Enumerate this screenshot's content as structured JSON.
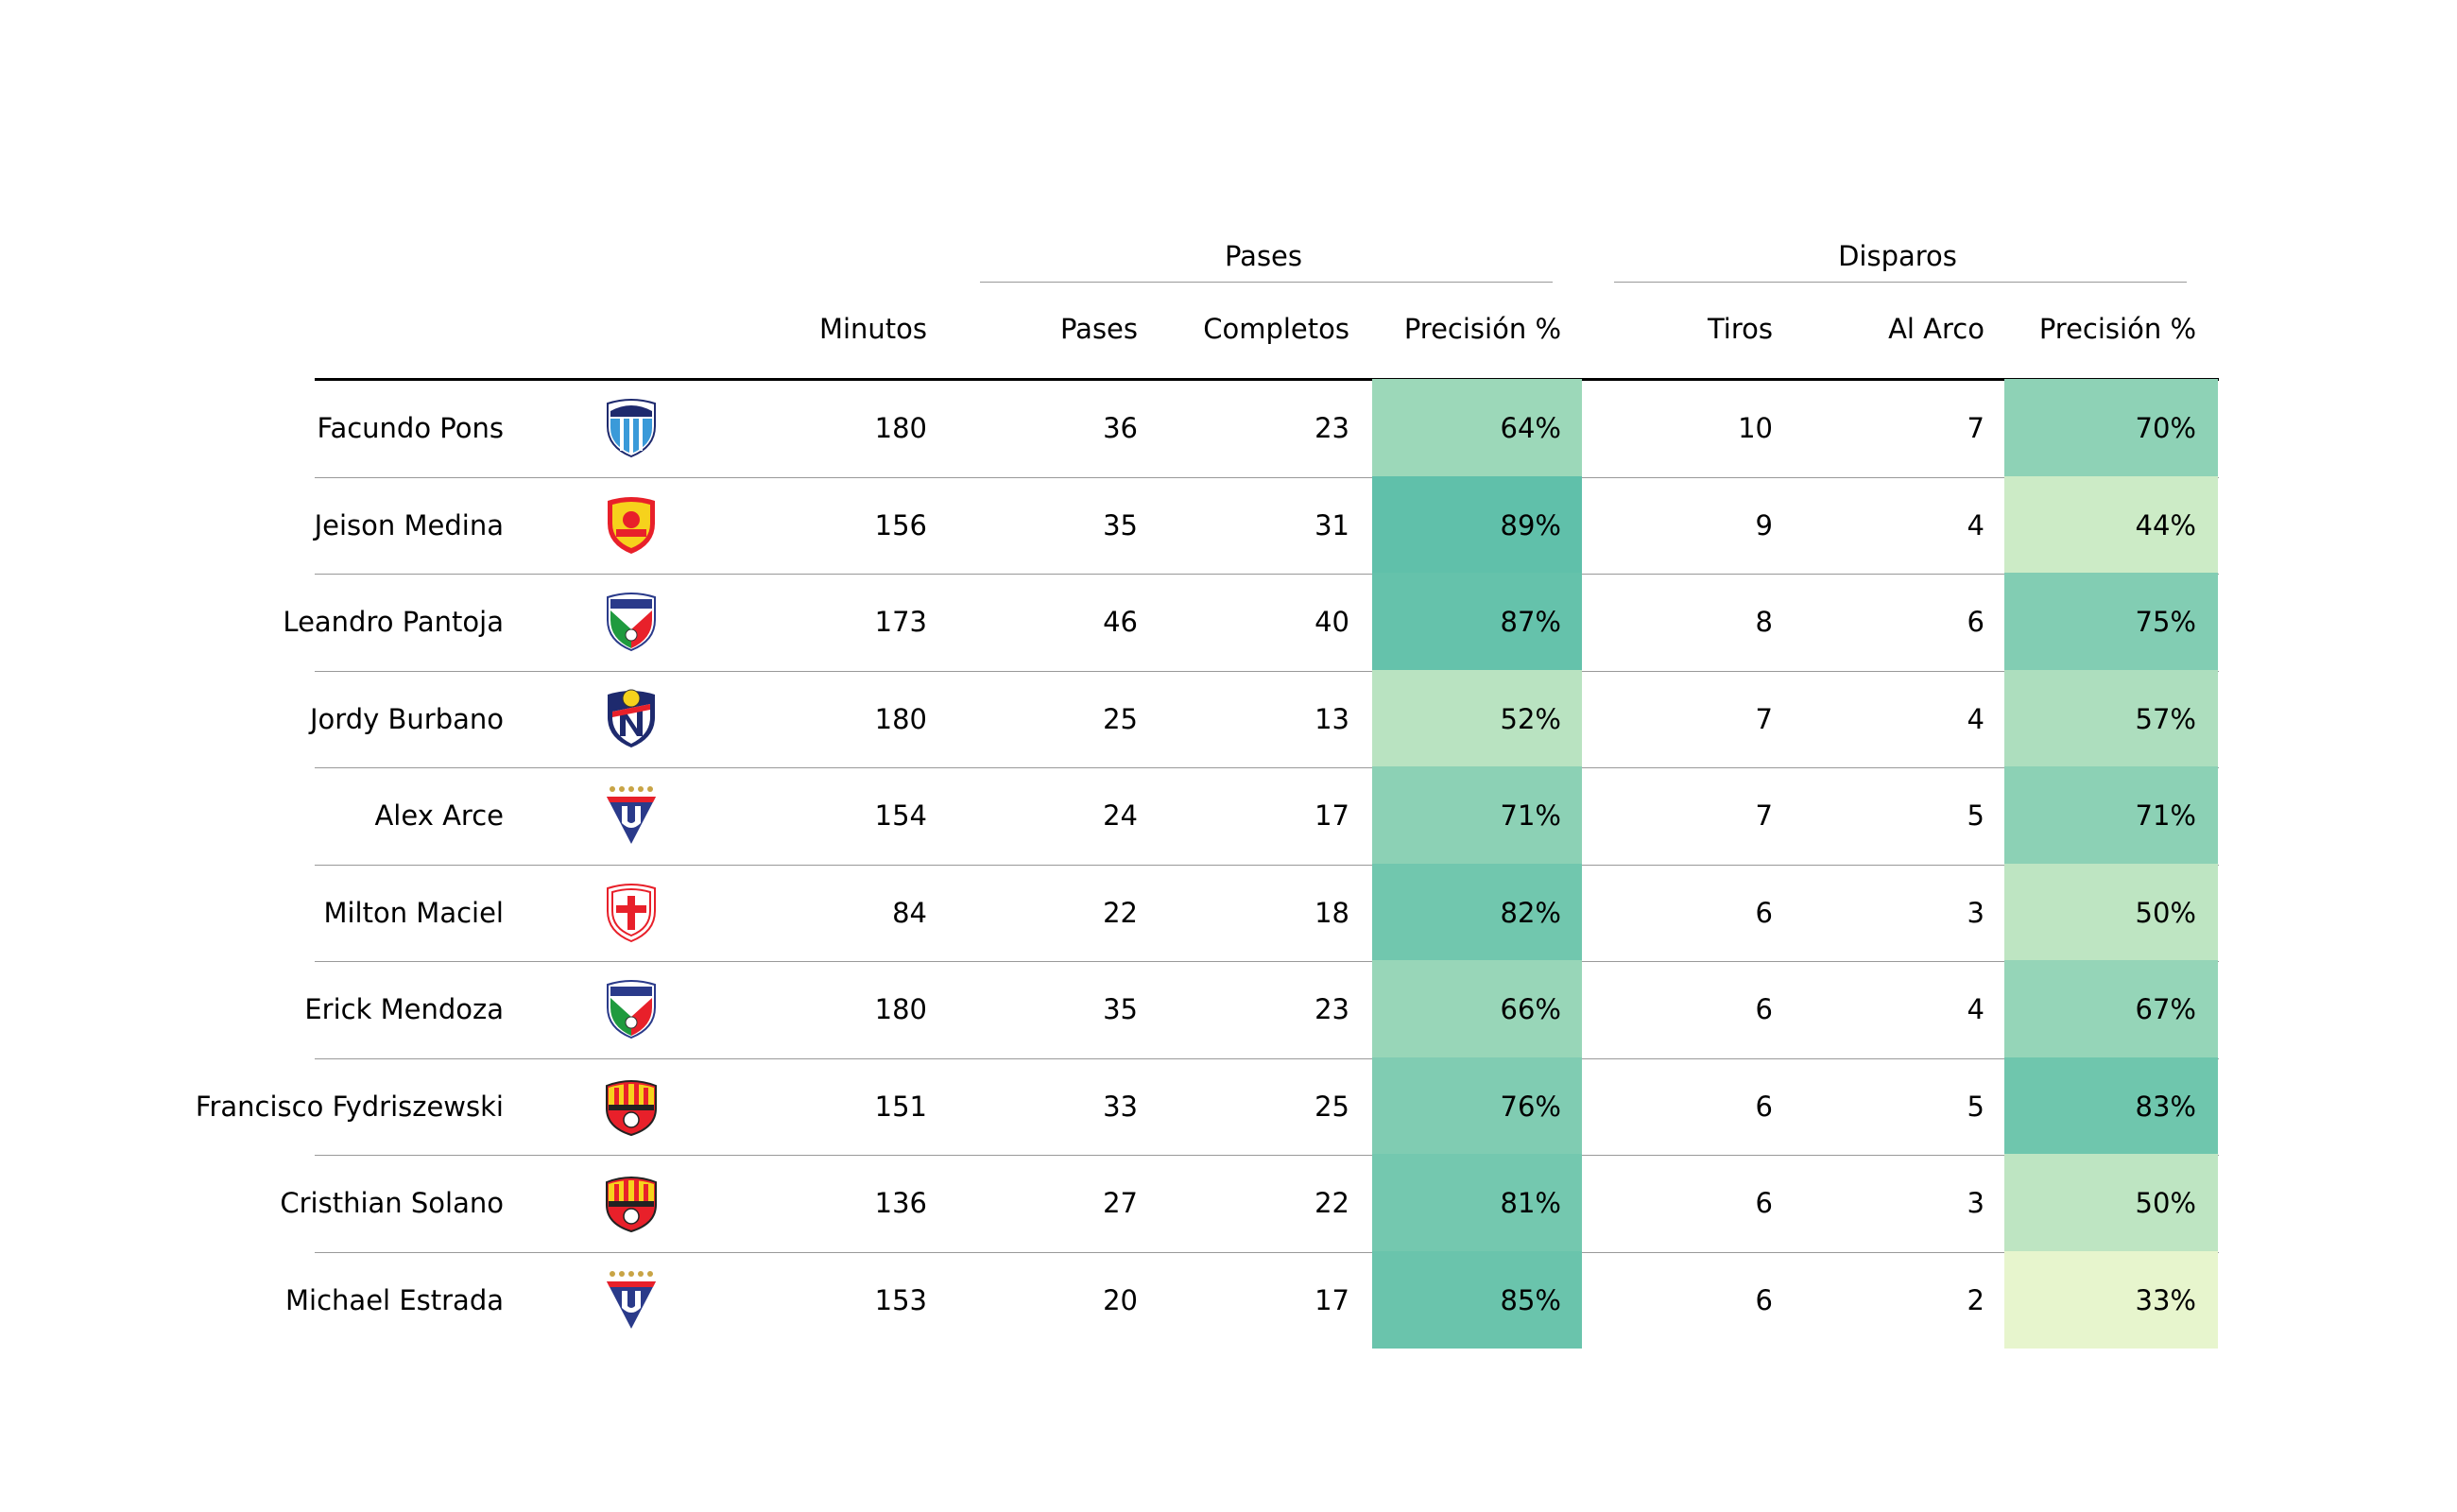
{
  "chart_data": {
    "type": "table",
    "group_headers": [
      {
        "label": "Pases",
        "columns": [
          "passes",
          "completed",
          "pass_pct"
        ]
      },
      {
        "label": "Disparos",
        "columns": [
          "shots",
          "on_target",
          "shot_pct"
        ]
      }
    ],
    "columns": [
      {
        "key": "player",
        "label": ""
      },
      {
        "key": "team_logo",
        "label": ""
      },
      {
        "key": "minutes",
        "label": "Minutos"
      },
      {
        "key": "passes",
        "label": "Pases"
      },
      {
        "key": "completed",
        "label": "Completos"
      },
      {
        "key": "pass_pct",
        "label": "Precisión %"
      },
      {
        "key": "shots",
        "label": "Tiros"
      },
      {
        "key": "on_target",
        "label": "Al Arco"
      },
      {
        "key": "shot_pct",
        "label": "Precisión %"
      }
    ],
    "rows": [
      {
        "player": "Facundo Pons",
        "team_logo": "macara-crest-icon",
        "minutes": "180",
        "passes": "36",
        "completed": "23",
        "pass_pct": "64%",
        "shots": "10",
        "on_target": "7",
        "shot_pct": "70%"
      },
      {
        "player": "Jeison Medina",
        "team_logo": "aucas-crest-icon",
        "minutes": "156",
        "passes": "35",
        "completed": "31",
        "pass_pct": "89%",
        "shots": "9",
        "on_target": "4",
        "shot_pct": "44%"
      },
      {
        "player": "Leandro Pantoja",
        "team_logo": "independiente-crest-icon",
        "minutes": "173",
        "passes": "46",
        "completed": "40",
        "pass_pct": "87%",
        "shots": "8",
        "on_target": "6",
        "shot_pct": "75%"
      },
      {
        "player": "Jordy Burbano",
        "team_logo": "el-nacional-crest-icon",
        "minutes": "180",
        "passes": "25",
        "completed": "13",
        "pass_pct": "52%",
        "shots": "7",
        "on_target": "4",
        "shot_pct": "57%"
      },
      {
        "player": "Alex Arce",
        "team_logo": "ldu-quito-crest-icon",
        "minutes": "154",
        "passes": "24",
        "completed": "17",
        "pass_pct": "71%",
        "shots": "7",
        "on_target": "5",
        "shot_pct": "71%"
      },
      {
        "player": "Milton Maciel",
        "team_logo": "tecnico-universitario-crest-icon",
        "minutes": "84",
        "passes": "22",
        "completed": "18",
        "pass_pct": "82%",
        "shots": "6",
        "on_target": "3",
        "shot_pct": "50%"
      },
      {
        "player": "Erick Mendoza",
        "team_logo": "independiente-crest-icon",
        "minutes": "180",
        "passes": "35",
        "completed": "23",
        "pass_pct": "66%",
        "shots": "6",
        "on_target": "4",
        "shot_pct": "67%"
      },
      {
        "player": "Francisco Fydriszewski",
        "team_logo": "barcelona-sc-crest-icon",
        "minutes": "151",
        "passes": "33",
        "completed": "25",
        "pass_pct": "76%",
        "shots": "6",
        "on_target": "5",
        "shot_pct": "83%"
      },
      {
        "player": "Cristhian Solano",
        "team_logo": "barcelona-sc-crest-icon",
        "minutes": "136",
        "passes": "27",
        "completed": "22",
        "pass_pct": "81%",
        "shots": "6",
        "on_target": "3",
        "shot_pct": "50%"
      },
      {
        "player": "Michael Estrada",
        "team_logo": "ldu-quito-crest-icon",
        "minutes": "153",
        "passes": "20",
        "completed": "17",
        "pass_pct": "85%",
        "shots": "6",
        "on_target": "2",
        "shot_pct": "33%"
      }
    ],
    "heatmap_columns": [
      "pass_pct",
      "shot_pct"
    ],
    "colormap": "YlGnBu-light",
    "colors": {
      "heat_low": "#eef8cf",
      "heat_high": "#5ebfa9",
      "rule_strong": "#000000",
      "rule_light": "#999999",
      "text": "#000000"
    }
  }
}
